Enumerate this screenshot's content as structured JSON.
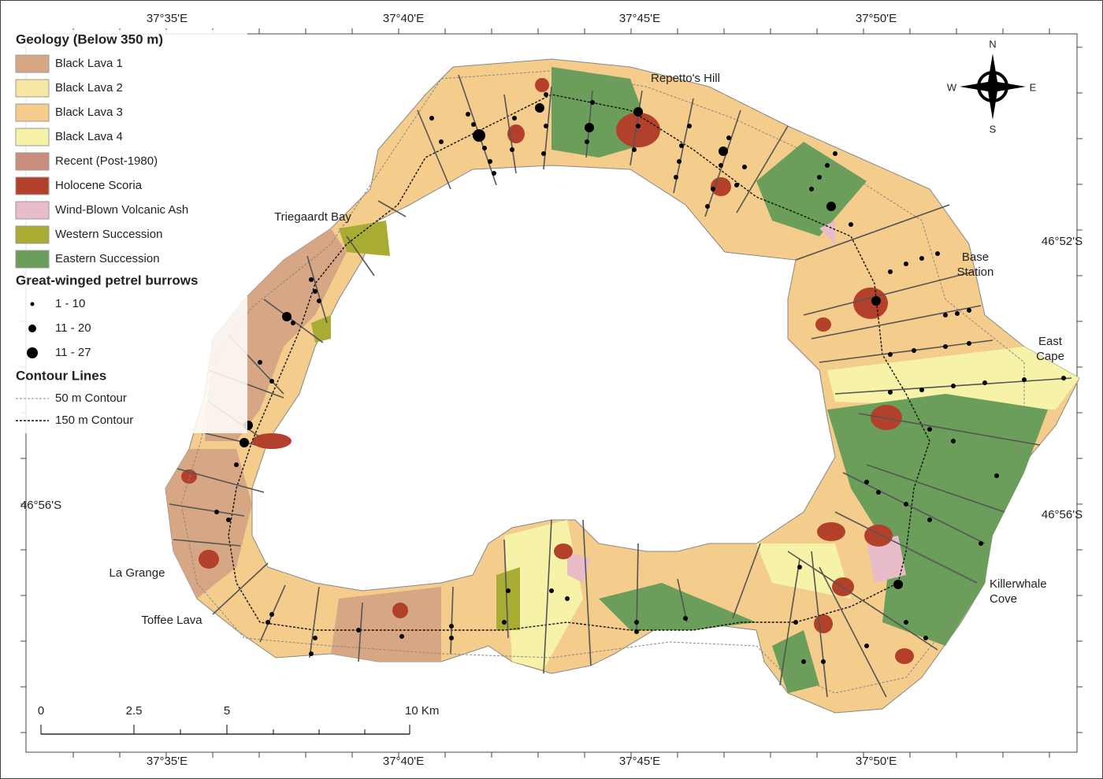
{
  "map": {
    "lon_labels_top": [
      "37°35'E",
      "37°40'E",
      "37°45'E",
      "37°50'E"
    ],
    "lon_labels_bottom": [
      "37°35'E",
      "37°40'E",
      "37°45'E",
      "37°50'E"
    ],
    "lat_labels_left": [
      "46°56'S"
    ],
    "lat_labels_right": [
      "46°52'S",
      "46°56'S"
    ],
    "legend": {
      "geology_title": "Geology (Below 350 m)",
      "geology": [
        {
          "label": "Black Lava 1",
          "color": "#d7a684"
        },
        {
          "label": "Black Lava 2",
          "color": "#f6e6a4"
        },
        {
          "label": "Black Lava 3",
          "color": "#f4cc8c"
        },
        {
          "label": "Black Lava 4",
          "color": "#f6f2a8"
        },
        {
          "label": "Recent (Post-1980)",
          "color": "#c98e7c"
        },
        {
          "label": "Holocene Scoria",
          "color": "#b3402a"
        },
        {
          "label": "Wind-Blown Volcanic Ash",
          "color": "#e8bcc8"
        },
        {
          "label": "Western Succession",
          "color": "#a9ac32"
        },
        {
          "label": "Eastern Succession",
          "color": "#6b9e5a"
        }
      ],
      "burrows_title": "Great-winged petrel burrows",
      "burrows": [
        "1 - 10",
        "11 - 20",
        "11 - 27"
      ],
      "contours_title": "Contour Lines",
      "contours": [
        "50 m Contour",
        "150 m Contour"
      ]
    },
    "places": [
      {
        "lines": [
          "Repetto's Hill"
        ]
      },
      {
        "lines": [
          "Triegaardt Bay"
        ]
      },
      {
        "lines": [
          "Base",
          "Station"
        ]
      },
      {
        "lines": [
          "East",
          "Cape"
        ]
      },
      {
        "lines": [
          "Killerwhale",
          "Cove"
        ]
      },
      {
        "lines": [
          "La Grange"
        ]
      },
      {
        "lines": [
          "Toffee Lava"
        ]
      }
    ],
    "compass": {
      "n": "N",
      "s": "S",
      "w": "W",
      "e": "E"
    },
    "scale": [
      "0",
      "2.5",
      "5",
      "10 Km"
    ]
  }
}
